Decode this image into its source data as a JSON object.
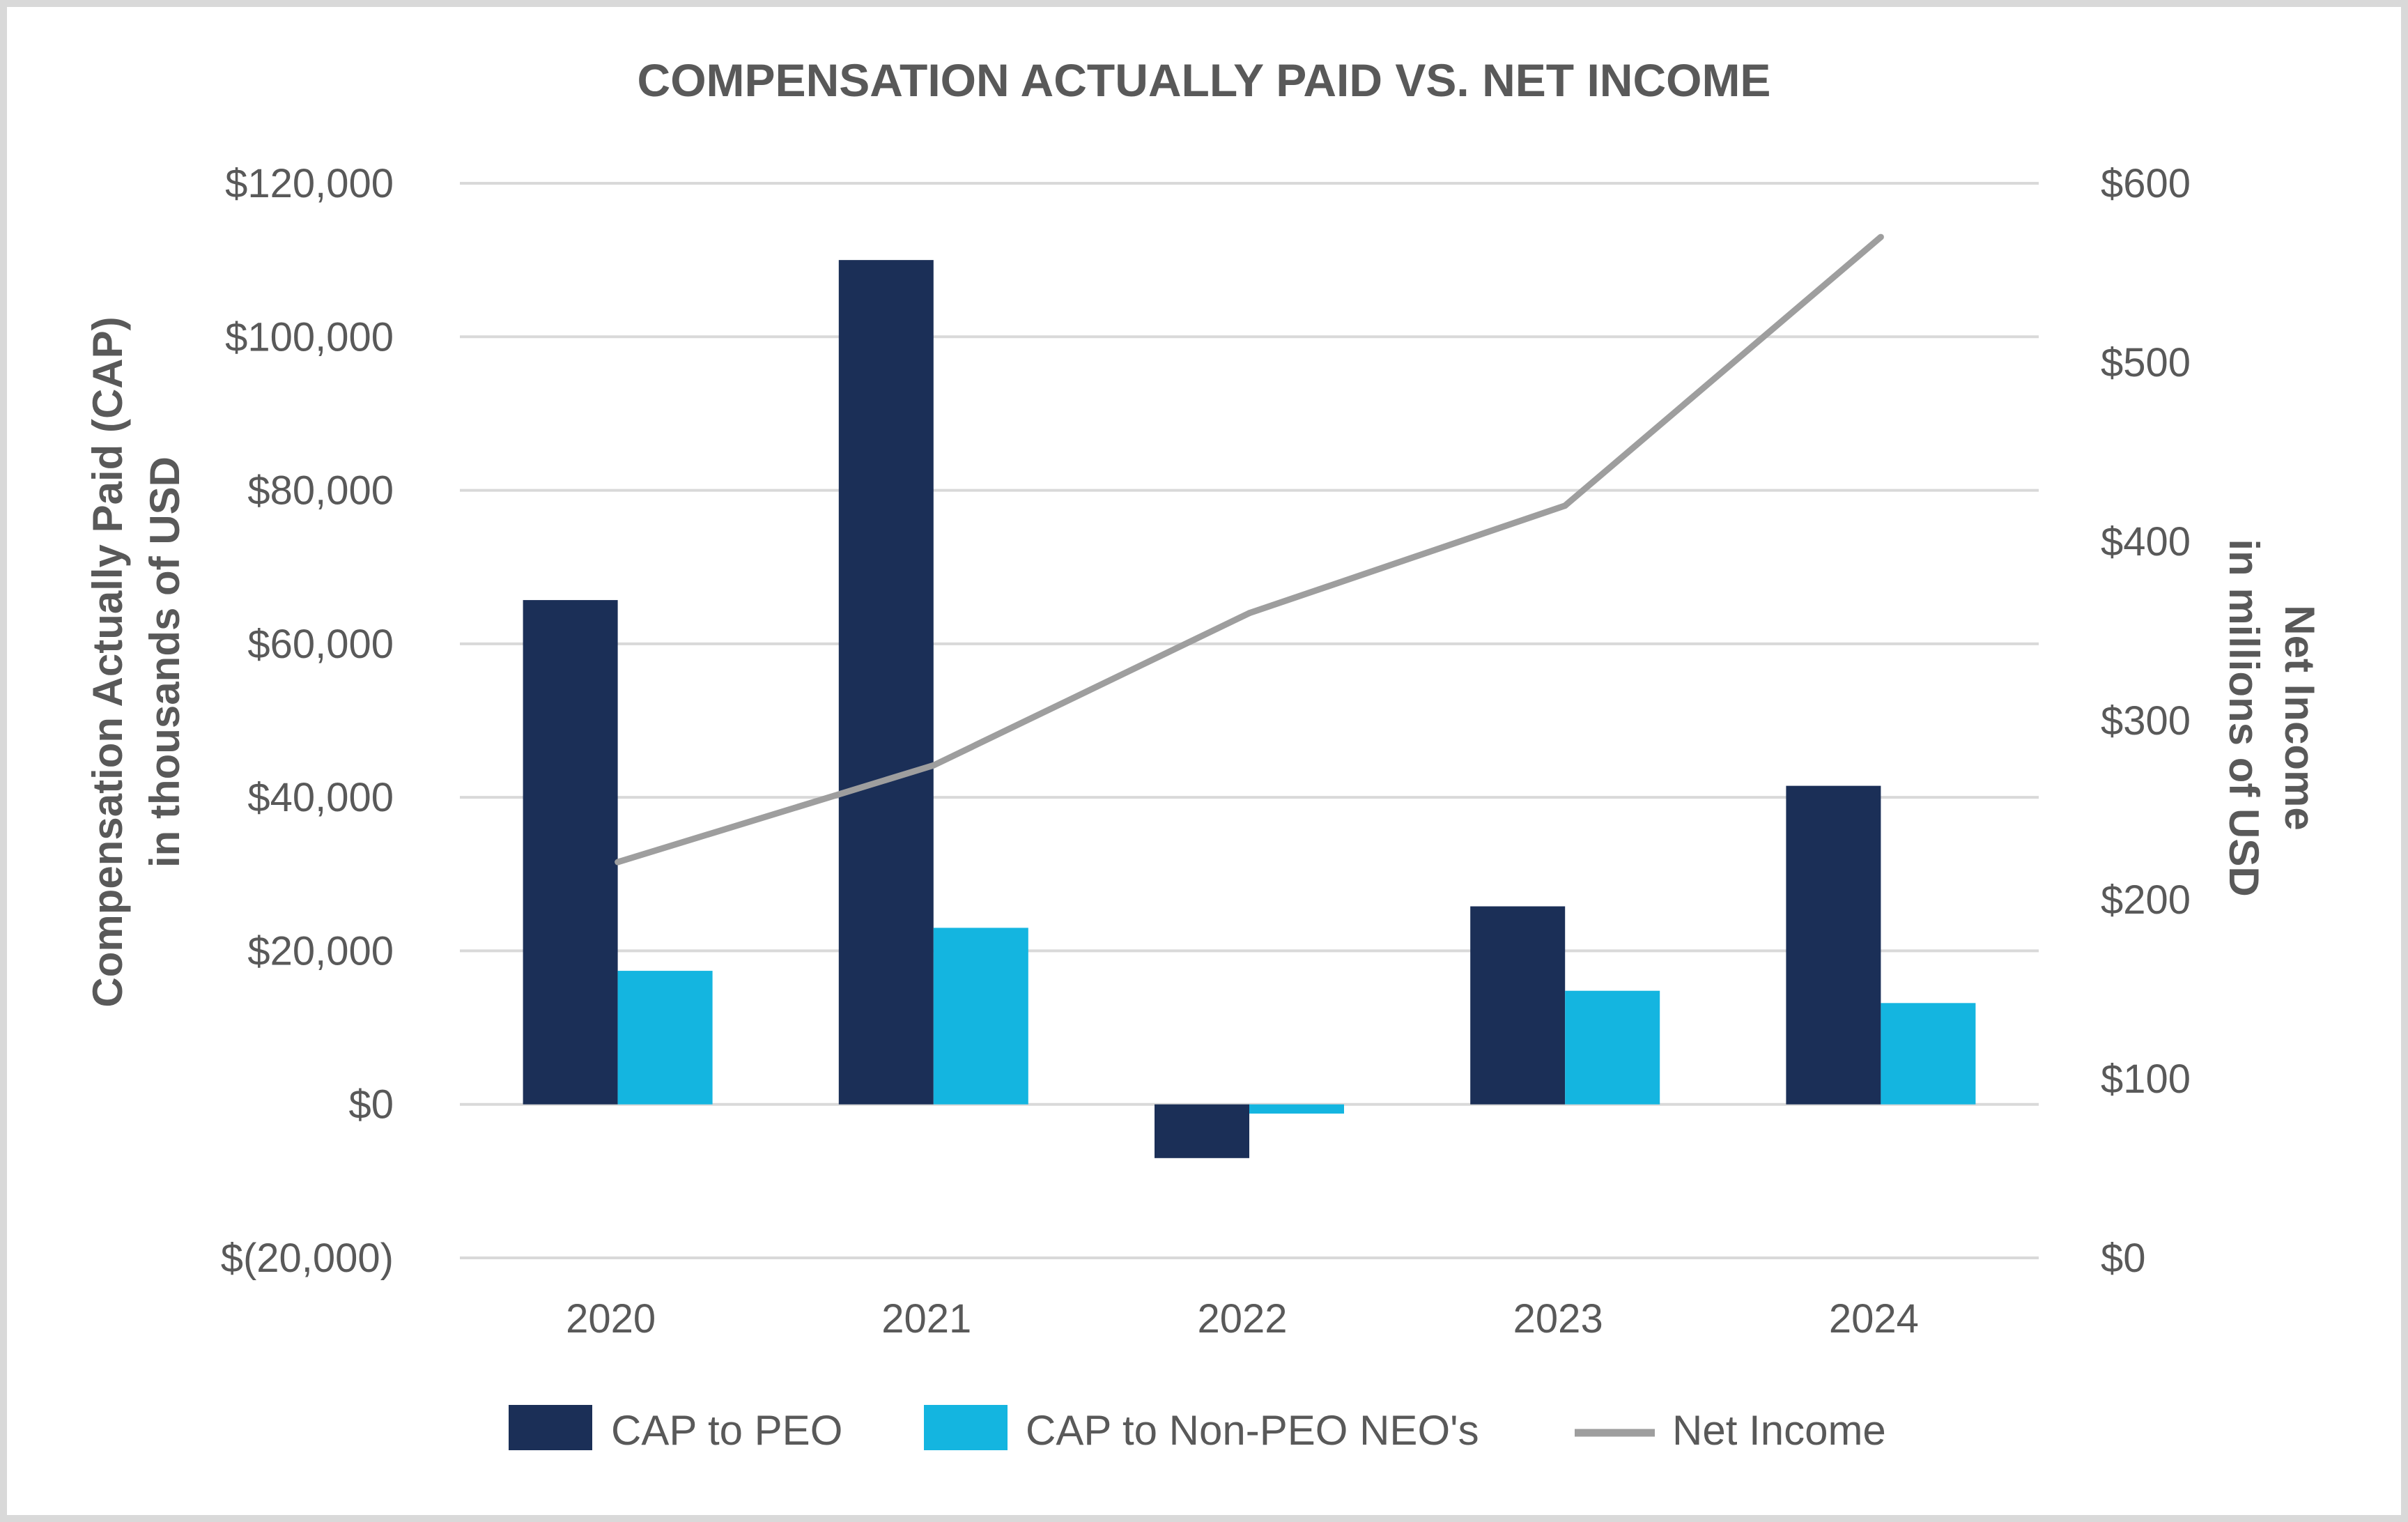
{
  "chart_data": {
    "type": "bar",
    "title": "COMPENSATION ACTUALLY PAID VS. NET INCOME",
    "categories": [
      "2020",
      "2021",
      "2022",
      "2023",
      "2024"
    ],
    "series": [
      {
        "name": "CAP to PEO",
        "kind": "bar",
        "axis": "left",
        "color": "#1b2f57",
        "values": [
          65700,
          110000,
          -7000,
          25800,
          41500
        ]
      },
      {
        "name": "CAP to Non-PEO NEO's",
        "kind": "bar",
        "axis": "left",
        "color": "#14b5e0",
        "values": [
          17400,
          23000,
          -1200,
          14800,
          13200
        ]
      },
      {
        "name": "Net Income",
        "kind": "line",
        "axis": "right",
        "color": "#9e9e9e",
        "values": [
          221,
          275,
          360,
          420,
          570
        ]
      }
    ],
    "y_left": {
      "label_line1": "Compensation Actually Paid (CAP)",
      "label_line2": "in thousands of USD",
      "range": [
        -20000,
        120000
      ],
      "ticks": [
        120000,
        100000,
        80000,
        60000,
        40000,
        20000,
        0,
        -20000
      ],
      "tick_labels": [
        "$120,000",
        "$100,000",
        "$80,000",
        "$60,000",
        "$40,000",
        "$20,000",
        "$0",
        "$(20,000)"
      ]
    },
    "y_right": {
      "label_line1": "Net Income",
      "label_line2": "in millions of USD",
      "range": [
        0,
        600
      ],
      "ticks": [
        600,
        500,
        400,
        300,
        200,
        100,
        0
      ],
      "tick_labels": [
        "$600",
        "$500",
        "$400",
        "$300",
        "$200",
        "$100",
        "$0"
      ]
    },
    "grid": true,
    "legend_position": "bottom"
  }
}
